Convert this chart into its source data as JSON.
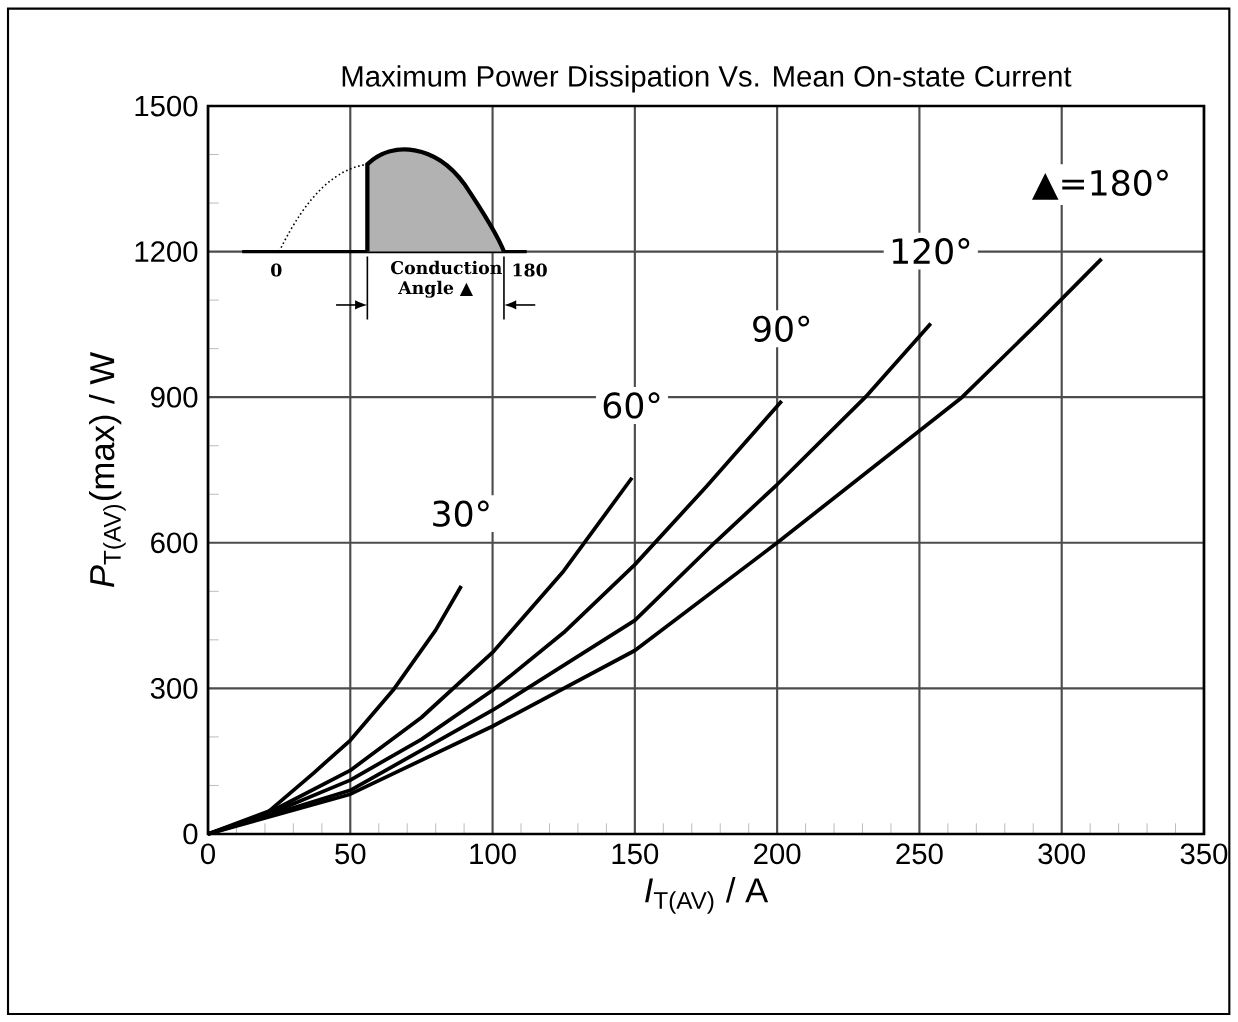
{
  "chart_data": {
    "type": "line",
    "title": "Maximum Power Dissipation Vs. Mean On-state Current",
    "xlabel": "*I*$_{T(AV)}$  /  A",
    "ylabel": "*P*$_{T(AV)}$(max) / W",
    "xlim": [
      0,
      350
    ],
    "xticks": [
      0,
      50,
      100,
      150,
      200,
      250,
      300,
      350
    ],
    "ylim": [
      0,
      1500
    ],
    "yticks": [
      0,
      300,
      600,
      900,
      1200,
      1500
    ],
    "grid": true,
    "legend": false,
    "marker": "none",
    "line_style": "solid",
    "series": [
      {
        "name": "30°",
        "color": "#000000",
        "x": [
          0,
          20,
          37,
          50,
          65,
          80,
          89
        ],
        "values": [
          0,
          40,
          125,
          193,
          296,
          420,
          511
        ]
      },
      {
        "name": "60°",
        "color": "#000000",
        "x": [
          0,
          25,
          50,
          75,
          100,
          125,
          149
        ],
        "values": [
          0,
          55,
          131,
          240,
          374,
          542,
          734
        ]
      },
      {
        "name": "90°",
        "color": "#000000",
        "x": [
          0,
          25,
          50,
          75,
          100,
          125,
          150,
          175,
          201.6
        ],
        "values": [
          0,
          50,
          111,
          195,
          296,
          415,
          555,
          715,
          892
        ]
      },
      {
        "name": "120°",
        "color": "#000000",
        "x": [
          0,
          50,
          100,
          150,
          178,
          200,
          231,
          254
        ],
        "values": [
          0,
          90,
          255,
          440,
          600,
          720,
          900,
          1052
        ]
      },
      {
        "name": "▲=180°",
        "color": "#000000",
        "x": [
          0,
          50,
          100,
          150,
          200,
          265,
          291.5,
          314
        ],
        "values": [
          0,
          82,
          222,
          378,
          600,
          900,
          1052,
          1185
        ]
      }
    ],
    "annotations": [
      "0",
      "180",
      "Conduction Angle ▲"
    ]
  }
}
